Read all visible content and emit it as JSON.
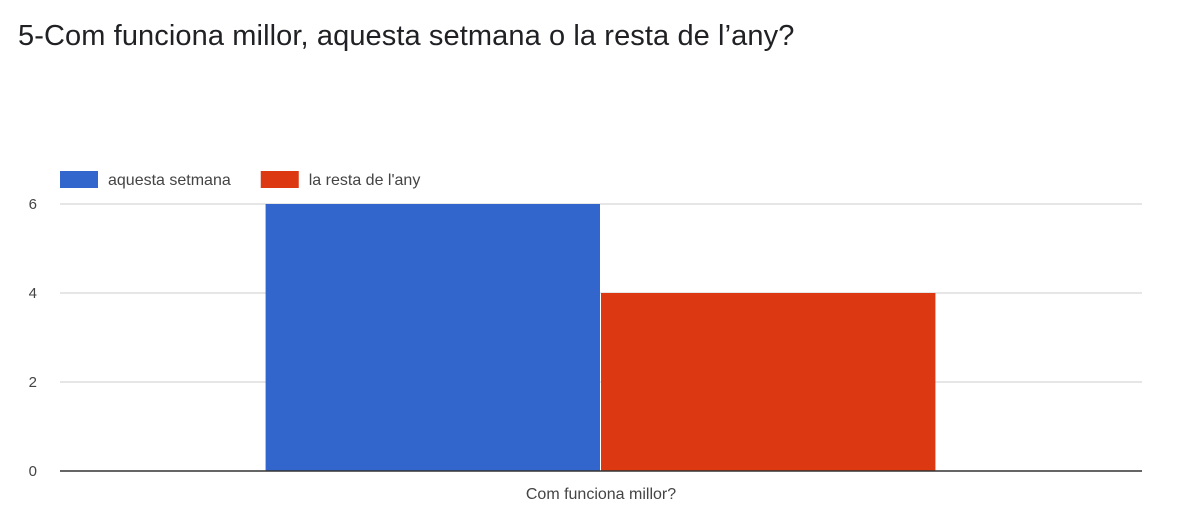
{
  "title": "5-Com funciona millor, aquesta setmana o la resta de l’any?",
  "chart_data": {
    "type": "bar",
    "categories": [
      "Com funciona millor?"
    ],
    "series": [
      {
        "name": "aquesta setmana",
        "values": [
          6
        ],
        "color": "#3366cc"
      },
      {
        "name": "la resta de l'any",
        "values": [
          4
        ],
        "color": "#dc3912"
      }
    ],
    "ylim": [
      0,
      6
    ],
    "yticks": [
      0,
      2,
      4,
      6
    ],
    "grid": true,
    "legend": "top-left",
    "axis_color": "#333333",
    "grid_color": "#cccccc"
  }
}
